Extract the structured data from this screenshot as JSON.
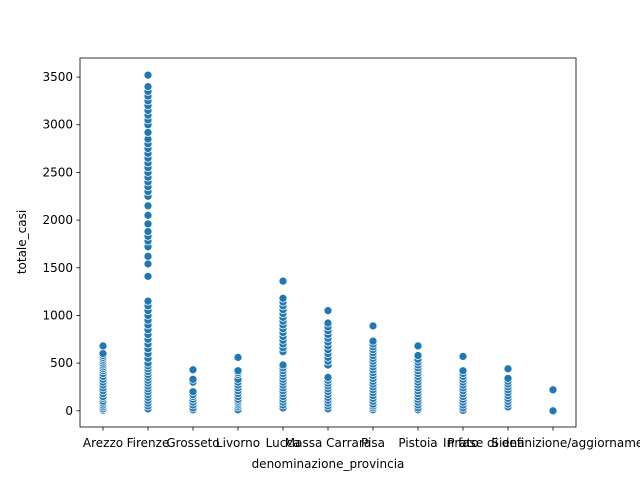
{
  "chart_data": {
    "type": "scatter",
    "title": "",
    "xlabel": "denominazione_provincia",
    "ylabel": "totale_casi",
    "ylim": [
      -170,
      3700
    ],
    "yticks": [
      0,
      500,
      1000,
      1500,
      2000,
      2500,
      3000,
      3500
    ],
    "grid": false,
    "legend": "none",
    "marker_color": "#1f77b4",
    "categories": [
      "Arezzo",
      "Firenze",
      "Grosseto",
      "Livorno",
      "Lucca",
      "Massa Carrara",
      "Pisa",
      "Pistoia",
      "Prato",
      "Siena",
      "In fase di definizione/aggiornamento"
    ],
    "series": [
      {
        "values": [
          [
            5,
            20,
            40,
            60,
            80,
            100,
            130,
            150,
            180,
            210,
            240,
            270,
            300,
            330,
            360,
            390,
            420,
            440,
            460,
            480,
            500,
            520,
            540,
            560,
            580,
            600,
            680
          ],
          [
            20,
            50,
            80,
            110,
            140,
            170,
            200,
            230,
            260,
            290,
            320,
            350,
            380,
            410,
            440,
            470,
            500,
            550,
            600,
            650,
            700,
            750,
            800,
            850,
            900,
            950,
            1000,
            1050,
            1100,
            1150,
            1410,
            1540,
            1620,
            1720,
            1780,
            1830,
            1880,
            1960,
            2050,
            2150,
            2250,
            2300,
            2350,
            2400,
            2450,
            2500,
            2550,
            2600,
            2650,
            2700,
            2750,
            2800,
            2850,
            2920,
            3000,
            3050,
            3100,
            3150,
            3200,
            3250,
            3300,
            3350,
            3400,
            3520
          ],
          [
            10,
            30,
            60,
            90,
            120,
            150,
            170,
            200,
            300,
            330,
            430
          ],
          [
            10,
            40,
            60,
            80,
            100,
            120,
            150,
            180,
            210,
            240,
            270,
            300,
            330,
            380,
            400,
            420,
            560
          ],
          [
            30,
            60,
            90,
            120,
            150,
            180,
            210,
            240,
            270,
            300,
            330,
            360,
            390,
            420,
            450,
            480,
            620,
            660,
            700,
            740,
            780,
            820,
            860,
            900,
            940,
            980,
            1020,
            1060,
            1100,
            1140,
            1180,
            1360
          ],
          [
            20,
            50,
            80,
            110,
            140,
            170,
            200,
            230,
            260,
            290,
            320,
            350,
            480,
            520,
            560,
            600,
            640,
            680,
            720,
            760,
            800,
            840,
            880,
            920,
            1050
          ],
          [
            10,
            30,
            50,
            70,
            100,
            130,
            160,
            190,
            220,
            250,
            280,
            310,
            340,
            370,
            400,
            430,
            460,
            490,
            520,
            550,
            580,
            610,
            640,
            670,
            700,
            730,
            890
          ],
          [
            10,
            30,
            60,
            90,
            120,
            150,
            180,
            210,
            240,
            270,
            300,
            330,
            360,
            390,
            420,
            450,
            480,
            510,
            540,
            580,
            680
          ],
          [
            5,
            30,
            60,
            90,
            120,
            150,
            180,
            210,
            240,
            270,
            300,
            330,
            360,
            390,
            420,
            570
          ],
          [
            40,
            70,
            100,
            130,
            160,
            190,
            220,
            250,
            280,
            310,
            340,
            440
          ],
          [
            0,
            220
          ]
        ]
      }
    ]
  }
}
